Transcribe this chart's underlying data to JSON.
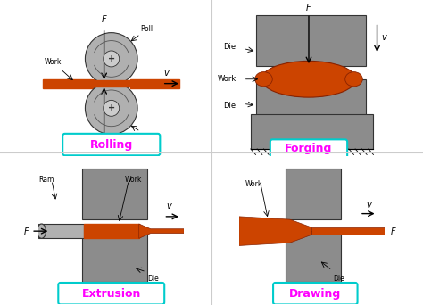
{
  "bg_color": "#ffffff",
  "gray_color": "#8c8c8c",
  "gray_light": "#b0b0b0",
  "work_color": "#cc4400",
  "magenta_color": "#ff00ff",
  "cyan_border": "#00cccc",
  "divider_color": "#cccccc",
  "panels": [
    "Rolling",
    "Forging",
    "Extrusion",
    "Drawing"
  ]
}
